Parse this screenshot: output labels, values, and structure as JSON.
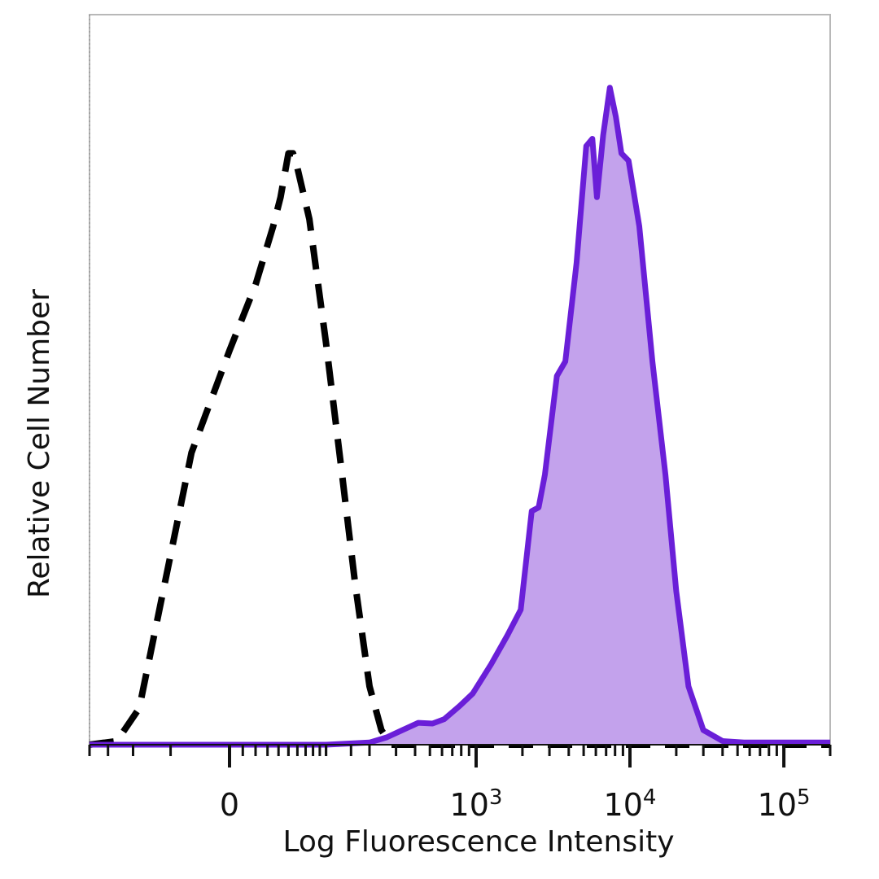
{
  "chart_data": {
    "type": "area",
    "title": "",
    "xlabel": "Log Fluorescence Intensity",
    "ylabel": "Relative Cell Number",
    "x_scale": "biexponential",
    "x_ticks": [
      {
        "value": 0,
        "label": "0",
        "exp": ""
      },
      {
        "value": 1000,
        "label": "10",
        "exp": "3"
      },
      {
        "value": 10000,
        "label": "10",
        "exp": "4"
      },
      {
        "value": 100000,
        "label": "10",
        "exp": "5"
      }
    ],
    "xlim": [
      -200,
      200000
    ],
    "ylim": [
      0,
      100
    ],
    "grid": false,
    "legend": "none",
    "series": [
      {
        "style": "dashed",
        "color": "#000000",
        "fill": "none",
        "points": [
          [
            -200,
            0
          ],
          [
            -130,
            0.5
          ],
          [
            -90,
            5
          ],
          [
            -60,
            20
          ],
          [
            -30,
            40
          ],
          [
            0,
            54
          ],
          [
            20,
            63
          ],
          [
            35,
            71
          ],
          [
            42,
            75
          ],
          [
            50,
            81
          ],
          [
            55,
            81
          ],
          [
            60,
            79
          ],
          [
            75,
            72
          ],
          [
            100,
            55
          ],
          [
            130,
            37
          ],
          [
            160,
            22
          ],
          [
            200,
            8
          ],
          [
            240,
            2
          ],
          [
            280,
            0
          ],
          [
            400,
            0
          ],
          [
            200000,
            0
          ]
        ]
      },
      {
        "style": "solid",
        "color": "#6a1fd8",
        "fill": "#c3a2ec",
        "points": [
          [
            -200,
            0
          ],
          [
            60,
            0
          ],
          [
            100,
            0
          ],
          [
            200,
            0.3
          ],
          [
            260,
            1
          ],
          [
            330,
            2
          ],
          [
            420,
            3
          ],
          [
            520,
            2.9
          ],
          [
            620,
            3.5
          ],
          [
            780,
            5.3
          ],
          [
            950,
            7
          ],
          [
            1250,
            11
          ],
          [
            1600,
            15
          ],
          [
            1950,
            18.5
          ],
          [
            2300,
            32
          ],
          [
            2550,
            32.5
          ],
          [
            2800,
            37
          ],
          [
            3350,
            50.5
          ],
          [
            3800,
            52.5
          ],
          [
            4500,
            66
          ],
          [
            5200,
            82
          ],
          [
            5700,
            83
          ],
          [
            6100,
            75
          ],
          [
            6700,
            83.5
          ],
          [
            7400,
            90
          ],
          [
            8100,
            86
          ],
          [
            8800,
            81
          ],
          [
            9800,
            80
          ],
          [
            11500,
            71
          ],
          [
            14000,
            52.5
          ],
          [
            17000,
            37
          ],
          [
            20000,
            21
          ],
          [
            24000,
            8
          ],
          [
            30000,
            2
          ],
          [
            40000,
            0.5
          ],
          [
            55000,
            0.3
          ],
          [
            200000,
            0.3
          ]
        ]
      }
    ]
  }
}
